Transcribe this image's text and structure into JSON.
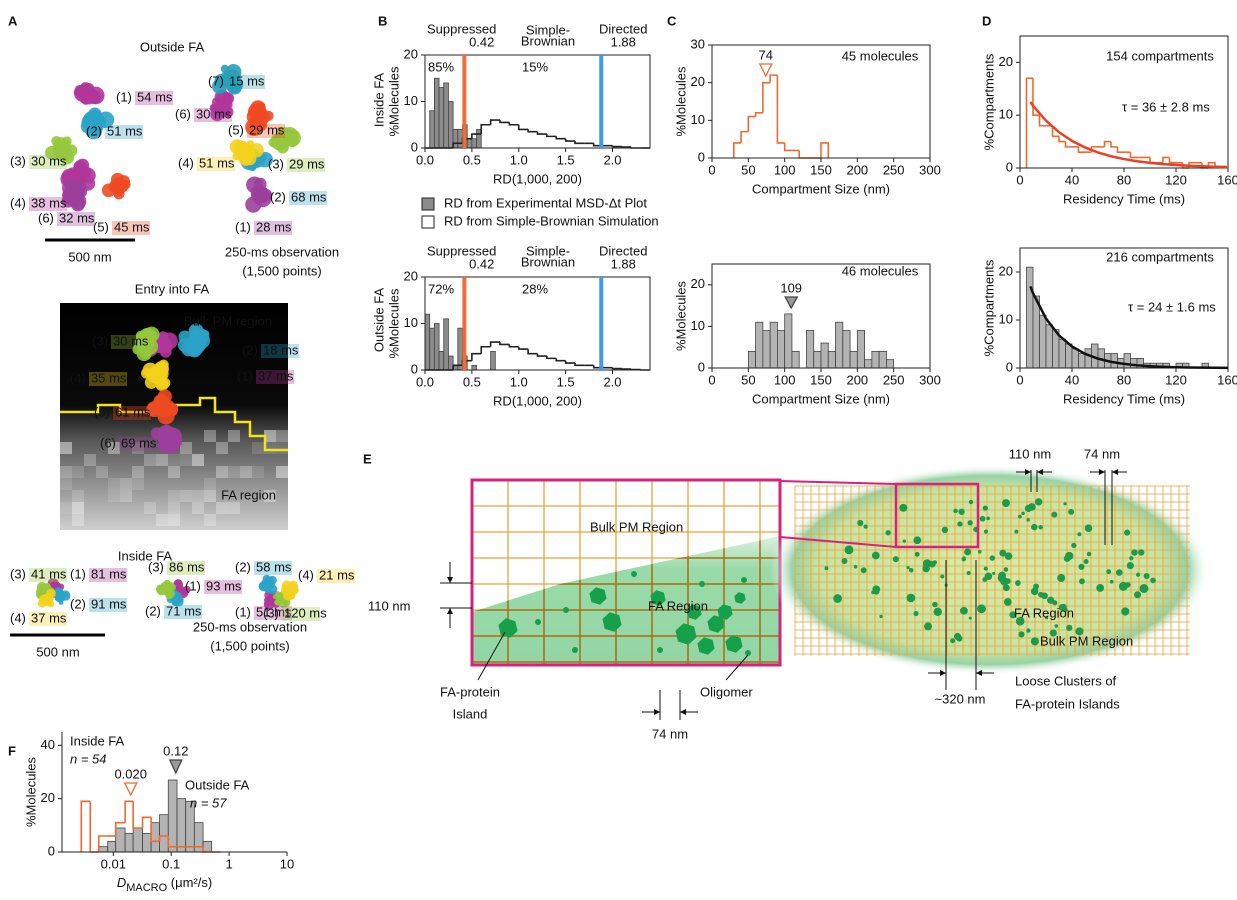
{
  "panel_letters": [
    "A",
    "B",
    "C",
    "D",
    "E",
    "F"
  ],
  "panel_a": {
    "outside_title": "Outside FA",
    "outside_groups": [
      [
        {
          "id": "(1)",
          "time": "54 ms"
        },
        {
          "id": "(2)",
          "time": "51 ms"
        },
        {
          "id": "(3)",
          "time": "30 ms"
        },
        {
          "id": "(4)",
          "time": "38 ms"
        },
        {
          "id": "(5)",
          "time": "45 ms"
        },
        {
          "id": "(6)",
          "time": "32 ms"
        }
      ],
      [
        {
          "id": "(1)",
          "time": "28 ms"
        },
        {
          "id": "(2)",
          "time": "68 ms"
        },
        {
          "id": "(3)",
          "time": "29 ms"
        },
        {
          "id": "(4)",
          "time": "51 ms"
        },
        {
          "id": "(5)",
          "time": "29 ms"
        },
        {
          "id": "(6)",
          "time": "30 ms"
        },
        {
          "id": "(7)",
          "time": "15 ms"
        }
      ]
    ],
    "scale_bar": "500 nm",
    "observation": [
      "250-ms observation",
      "(1,500 points)"
    ],
    "entry_title": "Entry into FA",
    "entry_regions": [
      "Bulk PM region",
      "FA region"
    ],
    "entry_trajectories": [
      {
        "id": "(1)",
        "time": "37 ms"
      },
      {
        "id": "(2)",
        "time": "18 ms"
      },
      {
        "id": "(3)",
        "time": "30 ms"
      },
      {
        "id": "(4)",
        "time": "35 ms"
      },
      {
        "id": "(5)",
        "time": "61 ms"
      },
      {
        "id": "(6)",
        "time": "69 ms"
      }
    ],
    "inside_title": "Inside FA",
    "inside_groups": [
      [
        {
          "id": "(1)",
          "time": "81 ms"
        },
        {
          "id": "(2)",
          "time": "91 ms"
        },
        {
          "id": "(3)",
          "time": "41 ms"
        },
        {
          "id": "(4)",
          "time": "37 ms"
        }
      ],
      [
        {
          "id": "(1)",
          "time": "93 ms"
        },
        {
          "id": "(2)",
          "time": "71 ms"
        },
        {
          "id": "(3)",
          "time": "86 ms"
        }
      ],
      [
        {
          "id": "(1)",
          "time": "51 ms"
        },
        {
          "id": "(2)",
          "time": "58 ms"
        },
        {
          "id": "(3)",
          "time": "120 ms"
        },
        {
          "id": "(4)",
          "time": "21 ms"
        }
      ]
    ],
    "inside_scale_bar": "500 nm",
    "inside_observation": [
      "250-ms observation",
      "(1,500 points)"
    ]
  },
  "panel_e": {
    "dim_110_left": "110 nm",
    "bulk_left": "Bulk PM Region",
    "fa_left": "FA Region",
    "island": [
      "FA-protein",
      "Island"
    ],
    "dim_74_left": "74 nm",
    "oligomer": "Oligomer",
    "dim_110_right": "110 nm",
    "dim_74_right": "74 nm",
    "fa_right": "FA Region",
    "bulk_right": "Bulk PM Region",
    "dim_320": "~320 nm",
    "clusters": [
      "Loose Clusters of",
      "FA-protein Islands"
    ]
  },
  "chart_data": [
    {
      "type": "histogram",
      "row_label": "Inside FA",
      "y_label": "%Molecules",
      "x_label": "RD(1,000, 200)",
      "legend": "below",
      "xlim": [
        0,
        2.4
      ],
      "xticks": [
        {
          "value": 0,
          "label": "0.0"
        },
        {
          "value": 0.5,
          "label": "0.5"
        },
        {
          "value": 1,
          "label": "1.0"
        },
        {
          "value": 1.5,
          "label": "1.5"
        },
        {
          "value": 2,
          "label": "2.0"
        }
      ],
      "ylim": [
        0,
        20
      ],
      "yticks": [
        0,
        10,
        20
      ],
      "series": [
        {
          "name": "RD from Experimental MSD-Δt Plot",
          "style": "bar",
          "color": "#8c8c8c",
          "bins": [
            0,
            0.05,
            0.1,
            0.15,
            0.2,
            0.25,
            0.3,
            0.35,
            0.4,
            0.45,
            0.5,
            0.55,
            0.6
          ],
          "values": [
            0,
            8,
            15,
            13,
            14,
            10,
            4,
            4,
            5,
            2,
            2,
            4
          ]
        },
        {
          "name": "RD from Simple-Brownian Simulation",
          "style": "step",
          "color": "#222222",
          "bins": [
            0,
            0.1,
            0.2,
            0.3,
            0.4,
            0.5,
            0.6,
            0.7,
            0.8,
            0.9,
            1,
            1.1,
            1.2,
            1.3,
            1.4,
            1.5,
            1.6,
            1.7,
            1.8,
            1.9,
            2,
            2.1,
            2.2,
            2.3,
            2.4
          ],
          "values": [
            0,
            0,
            0,
            1,
            2,
            3,
            5,
            6,
            5.5,
            5,
            4,
            3.5,
            3,
            2.5,
            2,
            1.5,
            1,
            1,
            0.5,
            0.5,
            0.3,
            0.2,
            0,
            0
          ]
        }
      ],
      "markers": [
        {
          "name": "Suppressed",
          "value": 0.42,
          "color": "#f26b3a"
        },
        {
          "name": "Directed",
          "value": 1.88,
          "color": "#3d9be9"
        }
      ],
      "middle_label": [
        "Simple-",
        "Brownian"
      ],
      "annotations": [
        "85%",
        "15%"
      ]
    },
    {
      "type": "histogram",
      "row_label": "Outside FA",
      "y_label": "%Molecules",
      "x_label": "RD(1,000, 200)",
      "xlim": [
        0,
        2.4
      ],
      "xticks": [
        {
          "value": 0,
          "label": "0.0"
        },
        {
          "value": 0.5,
          "label": "0.5"
        },
        {
          "value": 1,
          "label": "1.0"
        },
        {
          "value": 1.5,
          "label": "1.5"
        },
        {
          "value": 2,
          "label": "2.0"
        }
      ],
      "ylim": [
        0,
        20
      ],
      "yticks": [
        0,
        10,
        20
      ],
      "series": [
        {
          "style": "bar",
          "color": "#8c8c8c",
          "bins": [
            0,
            0.05,
            0.1,
            0.15,
            0.2,
            0.25,
            0.3,
            0.35,
            0.4,
            0.45,
            0.5,
            0.55,
            0.6,
            0.65,
            0.7,
            0.75,
            0.8
          ],
          "values": [
            12,
            9,
            10,
            4,
            11,
            3,
            1,
            9,
            3,
            0,
            1,
            0,
            0,
            0,
            4,
            0
          ]
        },
        {
          "style": "step",
          "color": "#222222",
          "bins": [
            0,
            0.1,
            0.2,
            0.3,
            0.4,
            0.5,
            0.6,
            0.7,
            0.8,
            0.9,
            1,
            1.1,
            1.2,
            1.3,
            1.4,
            1.5,
            1.6,
            1.7,
            1.8,
            1.9,
            2,
            2.1,
            2.2,
            2.3,
            2.4
          ],
          "values": [
            0,
            0,
            0,
            1,
            2,
            3.5,
            5,
            6,
            5.5,
            5,
            4.5,
            3.5,
            3,
            2.5,
            2,
            1.5,
            1,
            1,
            0.5,
            0.5,
            0.3,
            0.2,
            0.1,
            0
          ]
        }
      ],
      "markers": [
        {
          "name": "Suppressed",
          "value": 0.42,
          "color": "#f26b3a"
        },
        {
          "name": "Directed",
          "value": 1.88,
          "color": "#3d9be9"
        }
      ],
      "middle_label": [
        "Simple-",
        "Brownian"
      ],
      "annotations": [
        "72%",
        "28%"
      ]
    },
    {
      "type": "histogram",
      "y_label": "%Molecules",
      "x_label": "Compartment Size (nm)",
      "xlim": [
        0,
        300
      ],
      "xticks": [
        0,
        50,
        100,
        150,
        200,
        250,
        300
      ],
      "ylim": [
        0,
        30
      ],
      "yticks": [
        0,
        10,
        20,
        30
      ],
      "series": [
        {
          "style": "step",
          "color": "#ee6a2c",
          "bins": [
            30,
            40,
            50,
            60,
            70,
            80,
            90,
            100,
            110,
            120,
            130,
            140,
            150,
            160
          ],
          "values": [
            4,
            7,
            11,
            12,
            20,
            22,
            4,
            2,
            2,
            0,
            0,
            0,
            4
          ]
        }
      ],
      "peak": 74,
      "annotations": [
        "45 molecules"
      ]
    },
    {
      "type": "histogram",
      "y_label": "%Molecules",
      "x_label": "Compartment Size (nm)",
      "xlim": [
        0,
        300
      ],
      "xticks": [
        0,
        50,
        100,
        150,
        200,
        250,
        300
      ],
      "ylim": [
        0,
        25
      ],
      "yticks": [
        0,
        10,
        20
      ],
      "series": [
        {
          "style": "bar",
          "color": "#b3b3b3",
          "bins": [
            50,
            60,
            70,
            80,
            90,
            100,
            110,
            120,
            130,
            140,
            150,
            160,
            170,
            180,
            190,
            200,
            210,
            220,
            230,
            240,
            250
          ],
          "values": [
            4,
            11,
            9,
            11,
            9,
            13,
            4,
            0,
            9,
            4,
            6,
            4,
            11,
            9,
            4,
            9,
            2,
            4,
            4,
            2
          ]
        }
      ],
      "peak": 109,
      "annotations": [
        "46 molecules"
      ]
    },
    {
      "type": "histogram",
      "y_label": "%Compartments",
      "x_label": "Residency Time (ms)",
      "xlim": [
        0,
        160
      ],
      "xticks": [
        0,
        40,
        80,
        120,
        160
      ],
      "ylim": [
        0,
        25
      ],
      "yticks": [
        0,
        10,
        20
      ],
      "series": [
        {
          "style": "step",
          "color": "#ee6a2c",
          "bins": [
            5,
            10,
            15,
            20,
            25,
            30,
            35,
            40,
            45,
            50,
            55,
            60,
            65,
            70,
            75,
            80,
            85,
            90,
            95,
            100,
            105,
            110,
            115,
            120,
            125,
            130,
            135,
            140,
            145,
            150
          ],
          "values": [
            17,
            10,
            8,
            8,
            6,
            5,
            4,
            4,
            3,
            3,
            4,
            4,
            5,
            4,
            3,
            3,
            2,
            2,
            2,
            1,
            1,
            2,
            1,
            1,
            0,
            1,
            1,
            0,
            1
          ]
        }
      ],
      "fit": {
        "color": "#e8402a",
        "x": [
          8,
          10,
          20,
          30,
          40,
          50,
          60,
          70,
          80,
          90,
          100,
          110,
          120,
          130,
          140,
          150,
          160
        ],
        "values": [
          12.5,
          11.8,
          8.97,
          6.79,
          5.14,
          3.89,
          2.94,
          2.23,
          1.69,
          1.28,
          0.97,
          0.73,
          0.56,
          0.42,
          0.32,
          0.24,
          0.18
        ],
        "label": "τ = 36 ± 2.8 ms"
      },
      "annotations": [
        "154 compartments"
      ]
    },
    {
      "type": "histogram",
      "y_label": "%Compartments",
      "x_label": "Residency Time (ms)",
      "xlim": [
        0,
        160
      ],
      "xticks": [
        0,
        40,
        80,
        120,
        160
      ],
      "ylim": [
        0,
        25
      ],
      "yticks": [
        0,
        10,
        20
      ],
      "series": [
        {
          "style": "bar",
          "color": "#b3b3b3",
          "bins": [
            5,
            10,
            15,
            20,
            25,
            30,
            35,
            40,
            45,
            50,
            55,
            60,
            65,
            70,
            75,
            80,
            85,
            90,
            95,
            100,
            105,
            110,
            115,
            120,
            125,
            130,
            135,
            140,
            145,
            150
          ],
          "values": [
            21,
            15,
            11,
            9,
            8,
            6,
            5,
            4,
            3,
            4,
            5,
            4,
            3,
            3,
            2,
            3,
            2,
            2,
            1,
            1,
            1,
            1,
            0,
            1,
            1,
            0,
            0,
            1,
            0
          ]
        }
      ],
      "fit": {
        "color": "#111111",
        "x": [
          8,
          10,
          20,
          30,
          40,
          50,
          60,
          70,
          80,
          90,
          100,
          110,
          120,
          130,
          140,
          150,
          160
        ],
        "values": [
          17,
          15.6,
          10.3,
          6.79,
          4.48,
          2.95,
          1.95,
          1.28,
          0.85,
          0.56,
          0.37,
          0.24,
          0.16,
          0.11,
          0.07,
          0.05,
          0.03
        ],
        "label": "τ = 24 ± 1.6 ms"
      },
      "annotations": [
        "216 compartments"
      ]
    },
    {
      "type": "histogram",
      "y_label": "%Molecules",
      "x_label": "D",
      "x_label_subscript": "MACRO",
      "x_label_unit": " (μm²/s)",
      "xscale": "log",
      "xlim": [
        0.0013,
        10
      ],
      "xticks": [
        0.01,
        0.1,
        1,
        10
      ],
      "ylim": [
        0,
        45
      ],
      "yticks": [
        0,
        20,
        40
      ],
      "series": [
        {
          "name": "Outside FA",
          "n_label": "n = 57",
          "style": "bar",
          "color": "#b3b3b3",
          "bins": [
            0.0028,
            0.004,
            0.0056,
            0.008,
            0.011,
            0.016,
            0.022,
            0.032,
            0.045,
            0.063,
            0.089,
            0.126,
            0.178,
            0.251,
            0.355,
            0.5,
            0.71
          ],
          "values": [
            0,
            0,
            2,
            4,
            9,
            7,
            9,
            7,
            11,
            14,
            27,
            20,
            19,
            11,
            4,
            0
          ],
          "peak": 0.12
        },
        {
          "name": "Inside FA",
          "n_label": "n = 54",
          "style": "step",
          "color": "#ee6a2c",
          "bins": [
            0.0028,
            0.004,
            0.0056,
            0.008,
            0.011,
            0.016,
            0.022,
            0.032,
            0.045,
            0.063,
            0.089,
            0.126,
            0.178,
            0.251,
            0.355,
            0.5,
            0.71
          ],
          "values": [
            19,
            0,
            6,
            6,
            11,
            19,
            9,
            13,
            4,
            6,
            2,
            2,
            2,
            2,
            0,
            0
          ],
          "peak": {
            "value": 0.02,
            "label": "0.020"
          }
        }
      ]
    }
  ]
}
